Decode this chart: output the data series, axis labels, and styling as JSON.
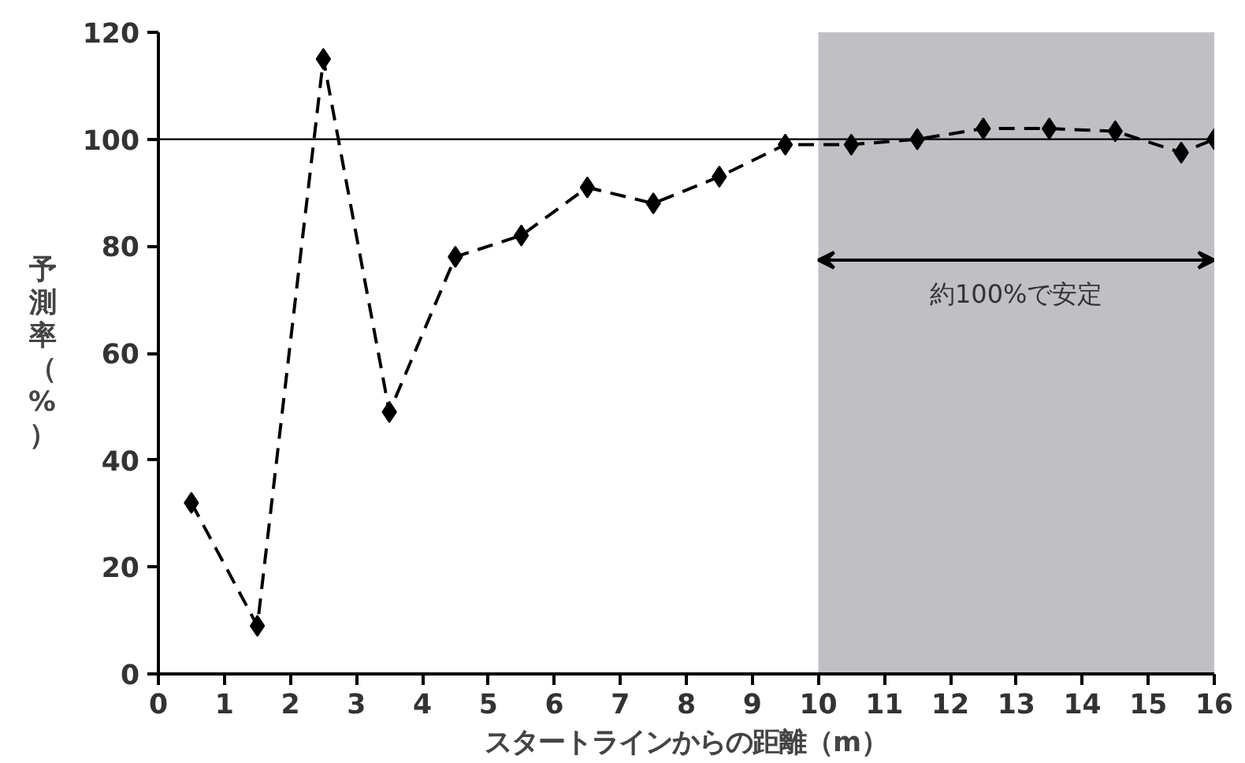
{
  "chart_data": {
    "type": "line",
    "xlabel": "スタートラインからの距離（m）",
    "ylabel": "予測率（%）",
    "x": [
      0.5,
      1.5,
      2.5,
      3.5,
      4.5,
      5.5,
      6.5,
      7.5,
      8.5,
      9.5,
      10.5,
      11.5,
      12.5,
      13.5,
      14.5,
      15.5,
      16
    ],
    "series": [
      {
        "color": "#000000",
        "values": [
          32,
          9,
          115,
          49,
          78,
          82,
          91,
          88,
          93,
          99,
          99,
          100,
          102,
          102,
          101.5,
          97.5,
          100
        ]
      }
    ],
    "marker": "diamond",
    "line_style": "dashed",
    "xlim": [
      0,
      16
    ],
    "ylim": [
      0,
      120
    ],
    "xticks": [
      0,
      1,
      2,
      3,
      4,
      5,
      6,
      7,
      8,
      9,
      10,
      11,
      12,
      13,
      14,
      15,
      16
    ],
    "yticks": [
      0,
      20,
      40,
      60,
      80,
      100,
      120
    ],
    "grid": false,
    "ref_lines": [
      {
        "axis": "y",
        "value": 100,
        "color": "#000000",
        "line_style": "solid"
      }
    ],
    "bands": [
      {
        "axis": "x",
        "from": 10,
        "to": 16,
        "label": "約100%で安定",
        "color": "#c0c0c4"
      }
    ]
  }
}
